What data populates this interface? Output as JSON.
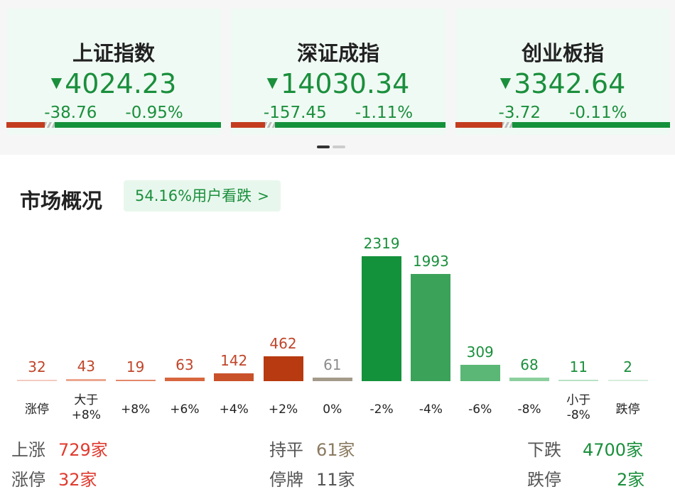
{
  "indices": [
    {
      "name": "上证指数",
      "price": "4024.23",
      "change": "-38.76",
      "pct": "-0.95%",
      "up_ratio": 0.18,
      "direction_icon": "down-triangle-icon"
    },
    {
      "name": "深证成指",
      "price": "14030.34",
      "change": "-157.45",
      "pct": "-1.11%",
      "up_ratio": 0.16,
      "direction_icon": "down-triangle-icon"
    },
    {
      "name": "创业板指",
      "price": "3342.64",
      "change": "-3.72",
      "pct": "-0.11%",
      "up_ratio": 0.22,
      "direction_icon": "down-triangle-icon"
    }
  ],
  "pager": {
    "count": 2,
    "active": 0
  },
  "overview": {
    "title": "市场概况",
    "sentiment": "54.16%用户看跌",
    "sentiment_icon": "chevron-right-icon"
  },
  "chart_data": {
    "type": "bar",
    "categories": [
      "涨停",
      "大于+8%",
      "+8%",
      "+6%",
      "+4%",
      "+2%",
      "0%",
      "-2%",
      "-4%",
      "-6%",
      "-8%",
      "小于-8%",
      "跌停"
    ],
    "category_display": [
      [
        "涨停"
      ],
      [
        "大于",
        "+8%"
      ],
      [
        "+8%"
      ],
      [
        "+6%"
      ],
      [
        "+4%"
      ],
      [
        "+2%"
      ],
      [
        "0%"
      ],
      [
        "-2%"
      ],
      [
        "-4%"
      ],
      [
        "-6%"
      ],
      [
        "-8%"
      ],
      [
        "小于",
        "-8%"
      ],
      [
        "跌停"
      ]
    ],
    "values": [
      32,
      43,
      19,
      63,
      142,
      462,
      61,
      2319,
      1993,
      309,
      68,
      11,
      2
    ],
    "colors": [
      "#f2cbbf",
      "#eba88f",
      "#e3876a",
      "#d8663f",
      "#c9512a",
      "#b83a10",
      "#a39a8a",
      "#14913b",
      "#3ba25a",
      "#5ab775",
      "#8ccf9f",
      "#b8e2c4",
      "#d6eedc"
    ],
    "value_colors": [
      "#c0452a",
      "#c0452a",
      "#c0452a",
      "#c0452a",
      "#c0452a",
      "#c0452a",
      "#8c8c8c",
      "#1a8f3c",
      "#1a8f3c",
      "#1a8f3c",
      "#1a8f3c",
      "#1a8f3c",
      "#1a8f3c"
    ],
    "ylim": [
      0,
      2319
    ]
  },
  "stats": {
    "up": {
      "label": "上涨",
      "value": "729家"
    },
    "flat": {
      "label": "持平",
      "value": "61家"
    },
    "down": {
      "label": "下跌",
      "value": "4700家"
    },
    "limit_up": {
      "label": "涨停",
      "value": "32家"
    },
    "suspended": {
      "label": "停牌",
      "value": "11家"
    },
    "limit_down": {
      "label": "跌停",
      "value": "2家"
    }
  },
  "colors": {
    "up": "#e03b2f",
    "flat": "#8a7a60",
    "down": "#1a8f3c"
  }
}
